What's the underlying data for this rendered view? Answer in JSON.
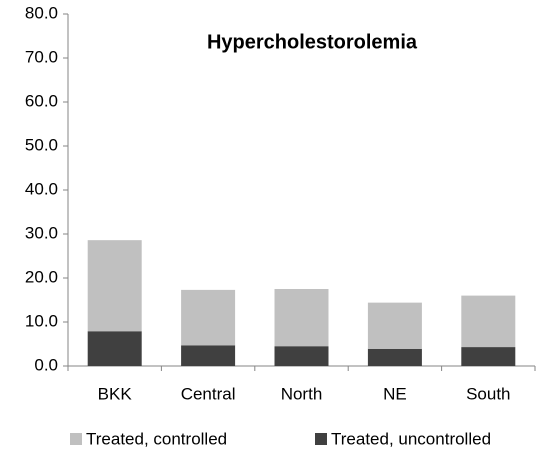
{
  "chart_data": {
    "type": "stacked-bar",
    "title": "Hypercholestorolemia",
    "categories": [
      "BKK",
      "Central",
      "North",
      "NE",
      "South"
    ],
    "series": [
      {
        "name": "Treated, controlled",
        "color": "#c0c0c0",
        "values": [
          20.7,
          12.6,
          13.0,
          10.5,
          11.7
        ]
      },
      {
        "name": "Treated, uncontrolled",
        "color": "#404040",
        "values": [
          7.9,
          4.7,
          4.5,
          3.9,
          4.3
        ]
      }
    ],
    "stack_order": "last-series-at-bottom",
    "ylim": [
      0,
      80
    ],
    "yticks": [
      {
        "value": 0,
        "label": "0.0"
      },
      {
        "value": 10,
        "label": "10.0"
      },
      {
        "value": 20,
        "label": "20.0"
      },
      {
        "value": 30,
        "label": "30.0"
      },
      {
        "value": 40,
        "label": "40.0"
      },
      {
        "value": 50,
        "label": "50.0"
      },
      {
        "value": 60,
        "label": "60.0"
      },
      {
        "value": 70,
        "label": "70.0"
      },
      {
        "value": 80,
        "label": "80.0"
      }
    ],
    "grid": false,
    "legend": "bottom"
  }
}
